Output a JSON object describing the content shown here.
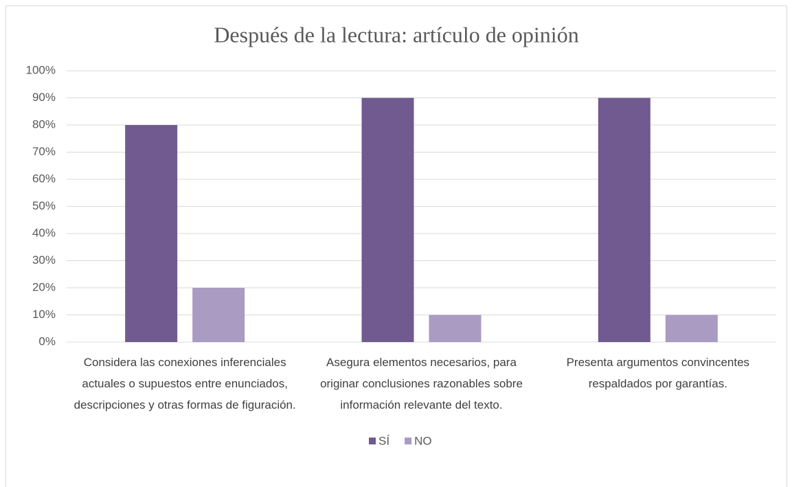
{
  "chart_data": {
    "type": "bar",
    "title": "Después de la lectura: artículo de opinión",
    "categories": [
      "Considera las conexiones inferenciales actuales o supuestos entre enunciados, descripciones y otras formas de figuración.",
      "Asegura elementos necesarios, para originar conclusiones razonables sobre información relevante del texto.",
      "Presenta argumentos convincentes respaldados por garantías."
    ],
    "series": [
      {
        "name": "SÍ",
        "color": "#705a8f",
        "values": [
          80,
          90,
          90
        ]
      },
      {
        "name": "NO",
        "color": "#a99bc1",
        "values": [
          20,
          10,
          10
        ]
      }
    ],
    "ylim": [
      0,
      100
    ],
    "yticks": [
      {
        "value": 0,
        "label": "0%"
      },
      {
        "value": 10,
        "label": "10%"
      },
      {
        "value": 20,
        "label": "20%"
      },
      {
        "value": 30,
        "label": "30%"
      },
      {
        "value": 40,
        "label": "40%"
      },
      {
        "value": 50,
        "label": "50%"
      },
      {
        "value": 60,
        "label": "60%"
      },
      {
        "value": 70,
        "label": "70%"
      },
      {
        "value": 80,
        "label": "80%"
      },
      {
        "value": 90,
        "label": "90%"
      },
      {
        "value": 100,
        "label": "100%"
      }
    ],
    "grid": true,
    "legend": "bottom"
  }
}
